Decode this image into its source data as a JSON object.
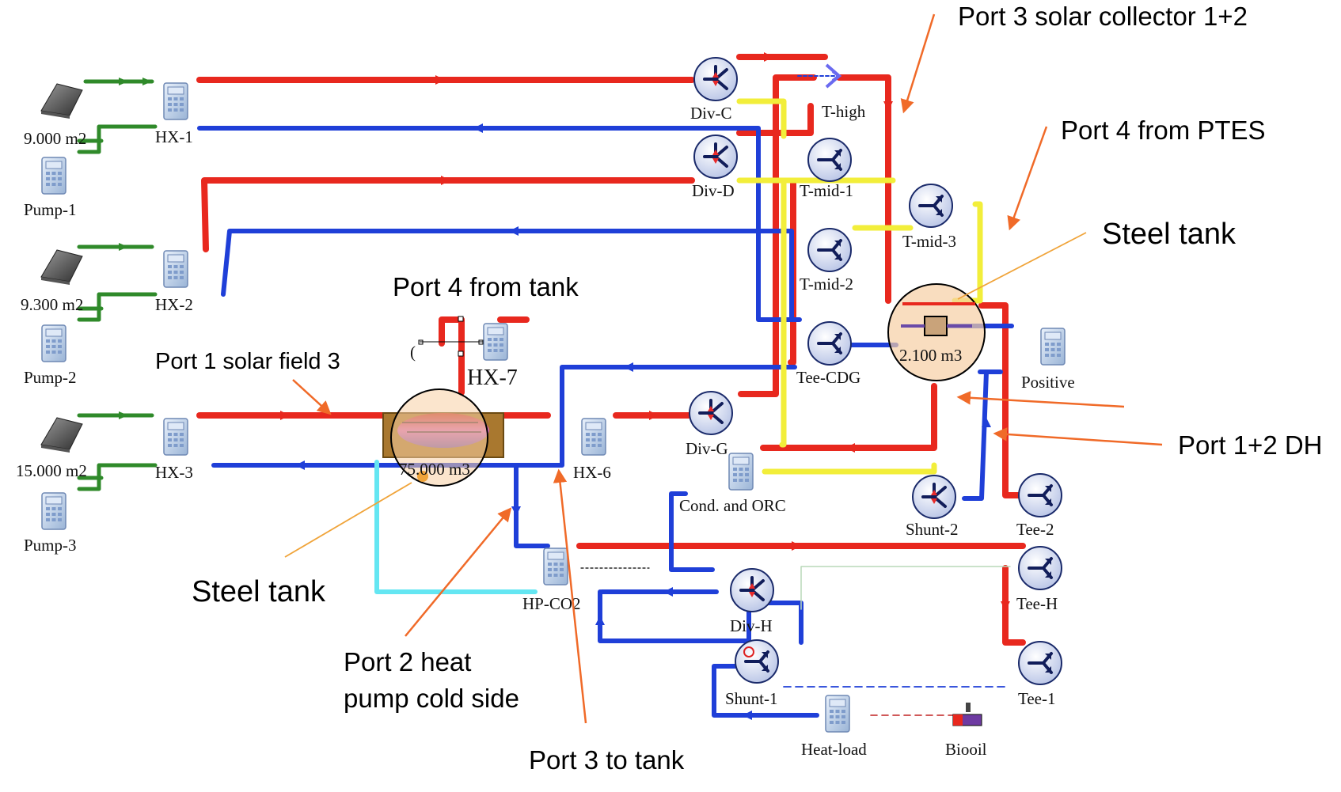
{
  "colors": {
    "hot": "#e8281e",
    "cold": "#1f3fd8",
    "solar_loop": "#2f8a2a",
    "yellow": "#f2ee3a",
    "light_cyan": "#64e6f2",
    "annotation": "#f06a28",
    "tank_fill": "#f7cfa4"
  },
  "components": {
    "collector_1_area": "9.000 m2",
    "collector_2_area": "9.300 m2",
    "collector_3_area": "15.000 m2",
    "pump_1": "Pump-1",
    "pump_2": "Pump-2",
    "pump_3": "Pump-3",
    "hx_1": "HX-1",
    "hx_2": "HX-2",
    "hx_3": "HX-3",
    "hx_6": "HX-6",
    "hx_7": "HX-7",
    "div_c": "Div-C",
    "div_d": "Div-D",
    "div_g": "Div-G",
    "div_h": "Div-H",
    "t_high": "T-high",
    "t_mid_1": "T-mid-1",
    "t_mid_2": "T-mid-2",
    "t_mid_3": "T-mid-3",
    "tee_cdg": "Tee-CDG",
    "tee_1": "Tee-1",
    "tee_2": "Tee-2",
    "tee_h": "Tee-H",
    "shunt_1": "Shunt-1",
    "shunt_2": "Shunt-2",
    "positive": "Positive",
    "cond_orc": "Cond. and ORC",
    "hp_co2": "HP-CO2",
    "heat_load": "Heat-load",
    "biooil": "Biooil",
    "big_tank_volume": "75.000 m3",
    "small_tank_volume": "2.100 m3",
    "hx7_fragment": "("
  },
  "annotations": {
    "port3_solar": "Port 3 solar collector 1+2",
    "port4_ptes": "Port 4 from PTES",
    "steel_tank_right": "Steel tank",
    "port4_tank": "Port 4 from tank",
    "port1_solar": "Port 1 solar field 3",
    "port12_dh": "Port 1+2 DH",
    "steel_tank_left": "Steel tank",
    "port2_hp_line1": "Port 2 heat",
    "port2_hp_line2": "pump cold side",
    "port3_tank": "Port 3 to tank"
  }
}
